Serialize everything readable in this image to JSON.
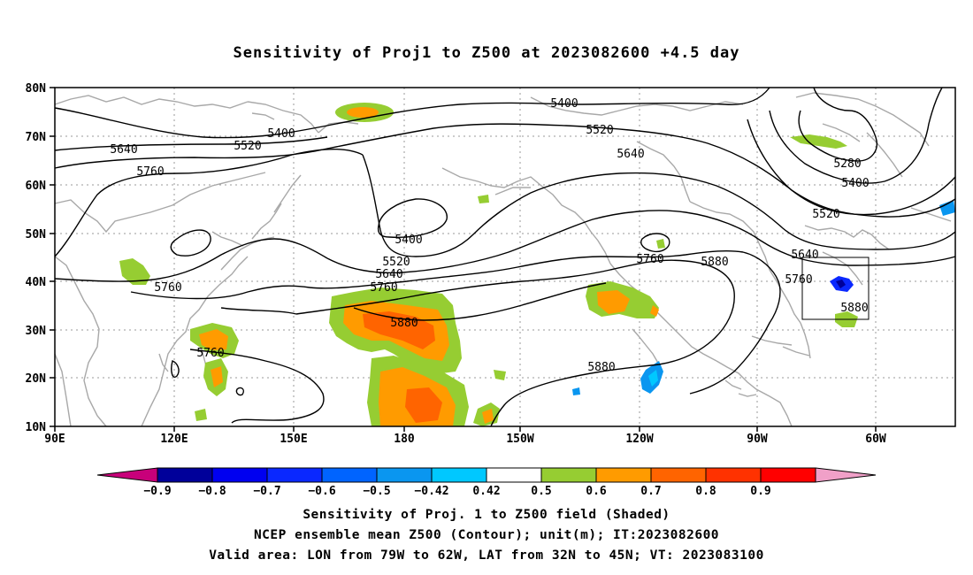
{
  "title": "Sensitivity of Proj1 to Z500 at 2023082600 +4.5 day",
  "axes": {
    "y_ticks": [
      "80N",
      "70N",
      "60N",
      "50N",
      "40N",
      "30N",
      "20N",
      "10N"
    ],
    "x_ticks": [
      "90E",
      "120E",
      "150E",
      "180",
      "150W",
      "120W",
      "90W",
      "60W"
    ]
  },
  "contour_labels": [
    {
      "text": "5400"
    },
    {
      "text": "5400"
    },
    {
      "text": "5520"
    },
    {
      "text": "5520"
    },
    {
      "text": "5640"
    },
    {
      "text": "5640"
    },
    {
      "text": "5760"
    },
    {
      "text": "5760"
    },
    {
      "text": "5280"
    },
    {
      "text": "5400"
    },
    {
      "text": "5520"
    },
    {
      "text": "5400"
    },
    {
      "text": "5520"
    },
    {
      "text": "5640"
    },
    {
      "text": "5760"
    },
    {
      "text": "5880"
    },
    {
      "text": "5760"
    },
    {
      "text": "5880"
    },
    {
      "text": "5880"
    },
    {
      "text": "5640"
    },
    {
      "text": "5760"
    },
    {
      "text": "5880"
    },
    {
      "text": "5760"
    }
  ],
  "colorbar": {
    "colors": [
      "#c8007a",
      "#00009a",
      "#0000f0",
      "#0a28ff",
      "#0064ff",
      "#0a96f0",
      "#00c8ff",
      "#ffffff",
      "#96cd32",
      "#ff9b00",
      "#ff6400",
      "#ff3200",
      "#ff0000",
      "#f0a0c8"
    ],
    "labels": [
      "−0.9",
      "−0.8",
      "−0.7",
      "−0.6",
      "−0.5",
      "−0.42",
      "0.42",
      "0.5",
      "0.6",
      "0.7",
      "0.8",
      "0.9"
    ]
  },
  "captions": {
    "line1": "Sensitivity of Proj. 1 to Z500 field (Shaded)",
    "line2": "NCEP ensemble mean Z500 (Contour); unit(m); IT:2023082600",
    "line3": "Valid area: LON from 79W to 62W, LAT from 32N to 45N; VT: 2023083100"
  }
}
